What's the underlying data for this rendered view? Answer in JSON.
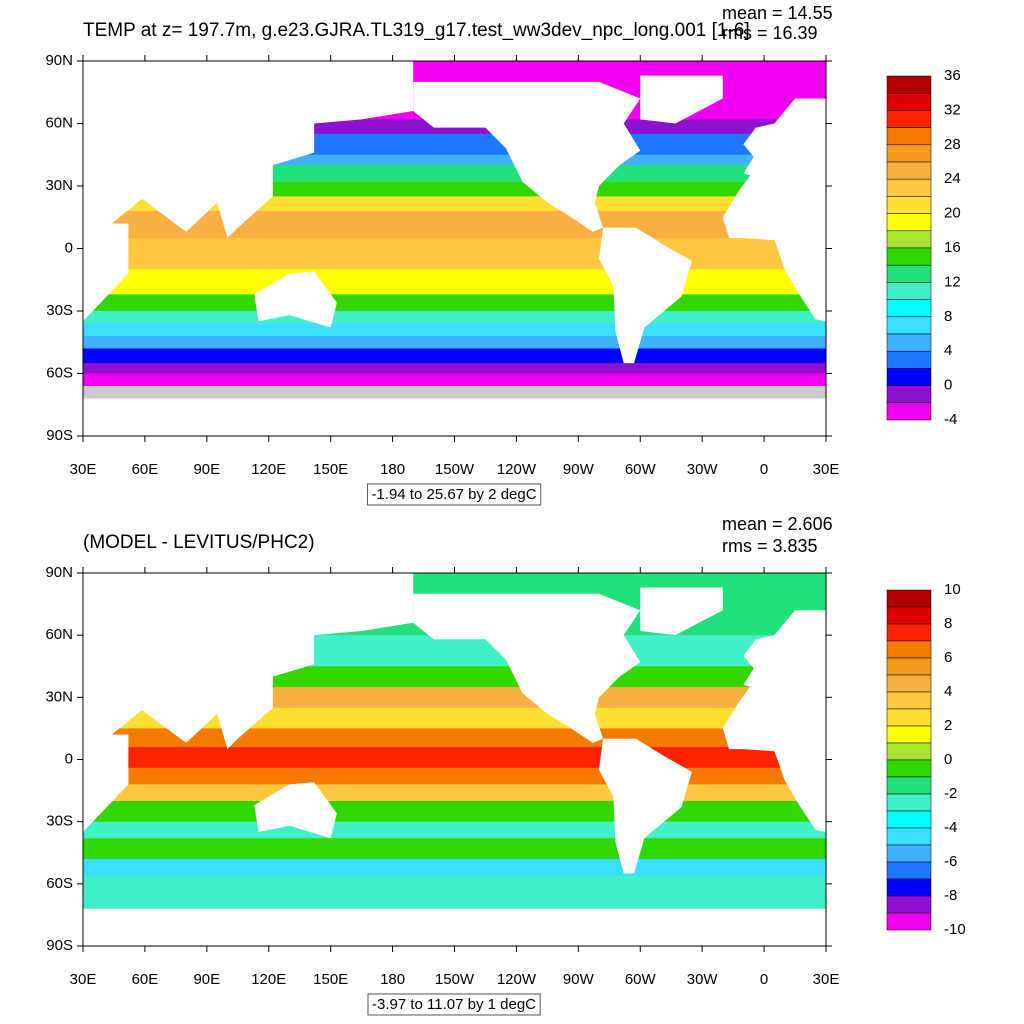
{
  "panels": [
    {
      "title": "TEMP at z= 197.7m, g.e23.GJRA.TL319_g17.test_ww3dev_npc_long.001 [1-6]",
      "mean": "mean = 14.55",
      "rms": "rms = 16.39",
      "lat_labels": [
        "90N",
        "60N",
        "30N",
        "0",
        "30S",
        "60S",
        "90S"
      ],
      "lon_labels": [
        "30E",
        "60E",
        "90E",
        "120E",
        "150E",
        "180",
        "150W",
        "120W",
        "90W",
        "60W",
        "30W",
        "0",
        "30E"
      ],
      "range_text": "-1.94 to 25.67 by 2 degC",
      "colorbar_labels": [
        36,
        32,
        28,
        24,
        20,
        16,
        12,
        8,
        4,
        0,
        -4
      ]
    },
    {
      "title": "(MODEL - LEVITUS/PHC2)",
      "mean": "mean = 2.606",
      "rms": "rms = 3.835",
      "lat_labels": [
        "90N",
        "60N",
        "30N",
        "0",
        "30S",
        "60S",
        "90S"
      ],
      "lon_labels": [
        "30E",
        "60E",
        "90E",
        "120E",
        "150E",
        "180",
        "150W",
        "120W",
        "90W",
        "60W",
        "30W",
        "0",
        "30E"
      ],
      "range_text": "-3.97 to 11.07 by 1 degC",
      "colorbar_labels": [
        10,
        8,
        6,
        4,
        2,
        0,
        -2,
        -4,
        -6,
        -8,
        -10
      ]
    }
  ],
  "colorbar_colors": [
    "#b00000",
    "#dd0000",
    "#ff2200",
    "#f57a00",
    "#f79a20",
    "#fab040",
    "#fdc840",
    "#ffe030",
    "#ffff00",
    "#a8e632",
    "#30d800",
    "#22e07a",
    "#40f0c8",
    "#00ffff",
    "#3ae0ff",
    "#40b0ff",
    "#1e78ff",
    "#0000ff",
    "#9010d0",
    "#ee00ee",
    "#cccccc",
    "#707070"
  ]
}
